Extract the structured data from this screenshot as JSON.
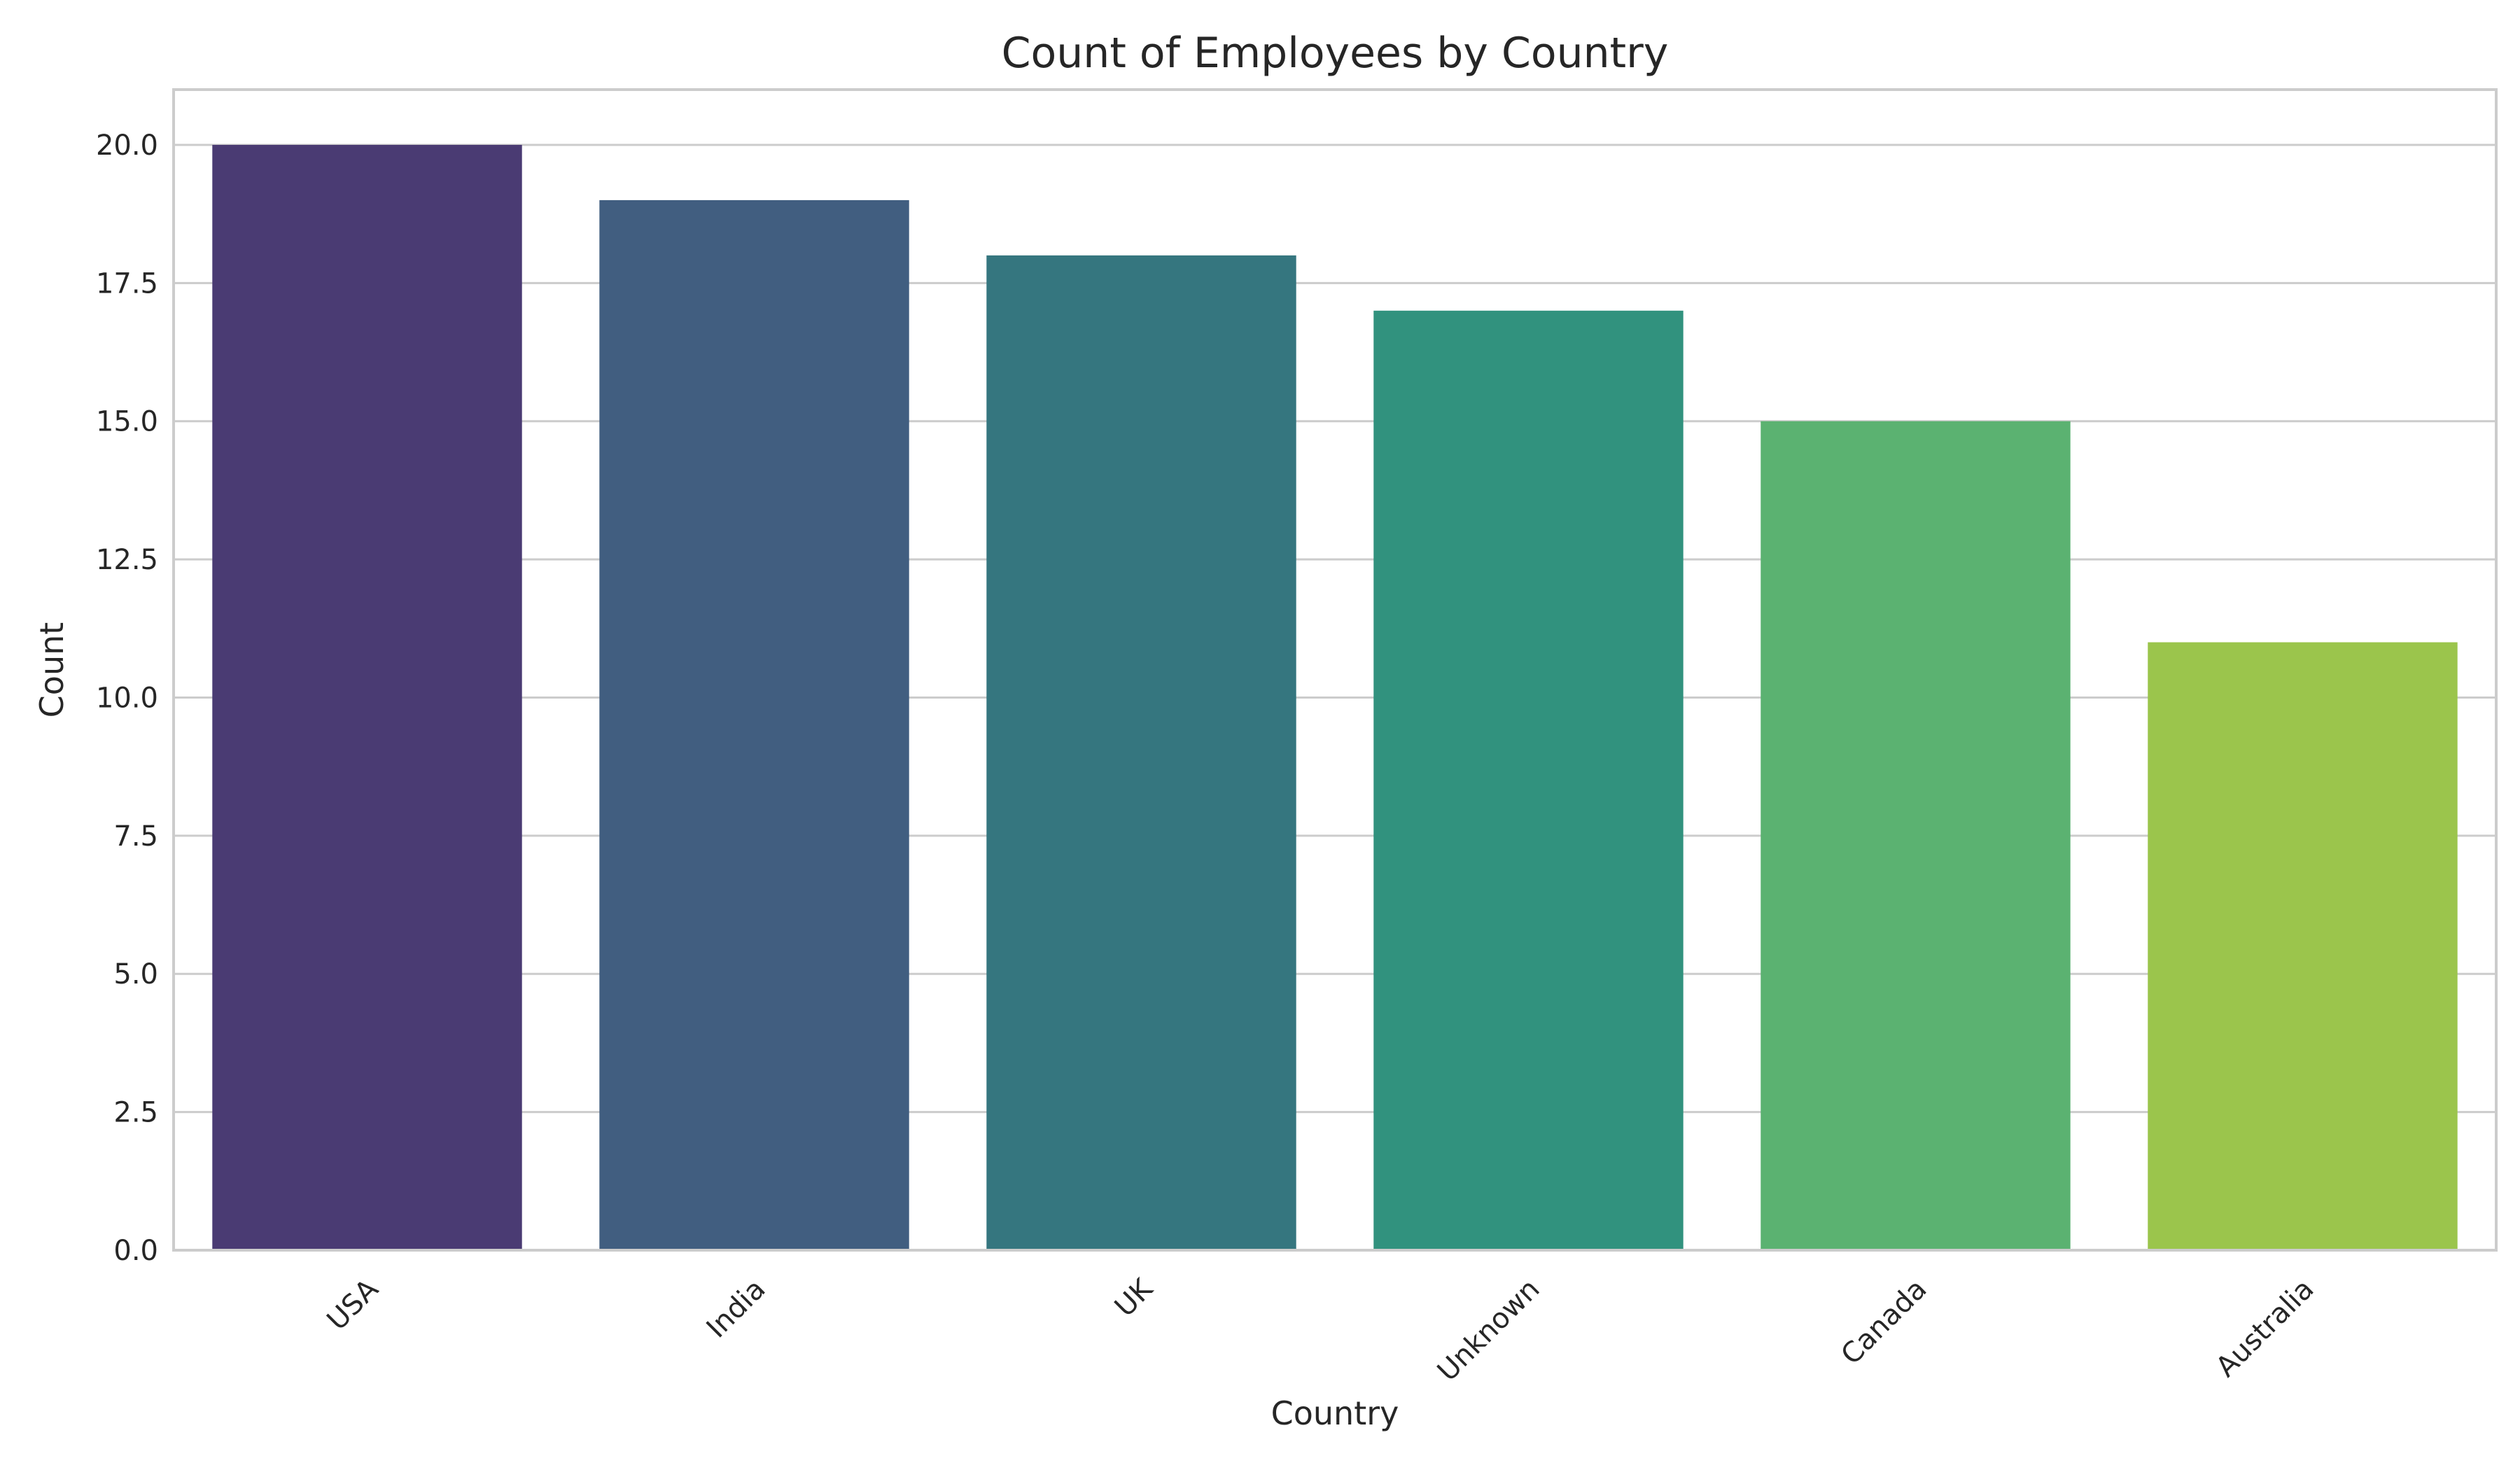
{
  "chart_data": {
    "type": "bar",
    "title": "Count of Employees by Country",
    "xlabel": "Country",
    "ylabel": "Count",
    "categories": [
      "USA",
      "India",
      "UK",
      "Unknown",
      "Canada",
      "Australia"
    ],
    "values": [
      20,
      19,
      18,
      17,
      15,
      11
    ],
    "colors": [
      "#4a3b73",
      "#415e80",
      "#35767f",
      "#31927e",
      "#5bb271",
      "#9bc54c"
    ],
    "ylim": [
      0,
      21
    ],
    "yticks": [
      "0.0",
      "2.5",
      "5.0",
      "7.5",
      "10.0",
      "12.5",
      "15.0",
      "17.5",
      "20.0"
    ],
    "grid": true,
    "legend": "none"
  }
}
